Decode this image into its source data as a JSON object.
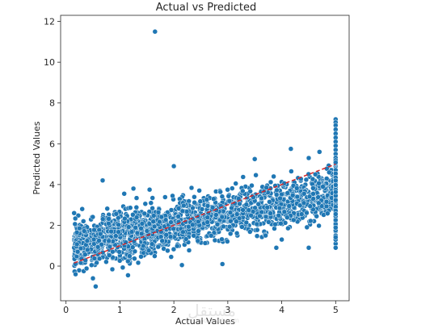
{
  "chart_data": {
    "type": "scatter",
    "title": "Actual vs Predicted",
    "xlabel": "Actual Values",
    "ylabel": "Predicted Values",
    "xlim": [
      -0.1,
      5.25
    ],
    "ylim": [
      -1.7,
      12.3
    ],
    "xticks": [
      0,
      1,
      2,
      3,
      4,
      5
    ],
    "yticks": [
      0,
      2,
      4,
      6,
      8,
      10,
      12
    ],
    "grid": false,
    "legend": "none",
    "point_color": "#1f77b4",
    "point_edge_color": "#ffffff",
    "reference_line": {
      "style": "dashed",
      "color": "#d62728",
      "from": [
        0.15,
        0.15
      ],
      "to": [
        5.0,
        5.0
      ]
    },
    "points_outliers": [
      {
        "x": 1.65,
        "y": 11.5
      },
      {
        "x": 0.68,
        "y": 4.2
      },
      {
        "x": 2.0,
        "y": 4.9
      },
      {
        "x": 3.5,
        "y": 5.25
      },
      {
        "x": 4.17,
        "y": 5.75
      },
      {
        "x": 0.55,
        "y": -1.0
      },
      {
        "x": 0.5,
        "y": -0.6
      },
      {
        "x": 1.15,
        "y": -0.45
      },
      {
        "x": 0.15,
        "y": 2.6
      },
      {
        "x": 0.3,
        "y": 2.8
      },
      {
        "x": 2.9,
        "y": 0.1
      },
      {
        "x": 4.5,
        "y": 0.9
      },
      {
        "x": 3.9,
        "y": 0.9
      },
      {
        "x": 4.5,
        "y": 5.3
      },
      {
        "x": 4.7,
        "y": 5.6
      },
      {
        "x": 1.25,
        "y": 3.8
      },
      {
        "x": 1.55,
        "y": 3.75
      },
      {
        "x": 1.08,
        "y": 3.55
      },
      {
        "x": 1.95,
        "y": 0.45
      },
      {
        "x": 2.15,
        "y": 0.05
      },
      {
        "x": 3.7,
        "y": 1.5
      },
      {
        "x": 4.0,
        "y": 1.3
      }
    ],
    "points_cap": {
      "x": 5.0,
      "y": [
        7.2,
        7.05,
        6.9,
        6.7,
        6.5,
        6.3,
        6.1,
        5.9,
        5.7,
        5.5,
        5.3,
        5.1,
        4.9,
        4.7,
        4.5,
        4.3,
        4.1,
        3.9,
        3.7,
        3.5,
        3.3,
        3.1,
        2.9,
        2.7,
        2.5,
        2.3,
        2.1,
        1.9,
        1.7,
        1.5,
        1.3,
        1.1,
        0.9
      ]
    },
    "cloud": {
      "description_points": "dense cloud approximately following y = 0.55*x + 0.9 with spread ~0.65",
      "x_range": [
        0.15,
        5.0
      ],
      "slope": 0.55,
      "intercept": 0.9,
      "spread": 0.65,
      "count": 1800
    }
  },
  "watermark": {
    "text": "مستقل",
    "subtext": "mostaql.com"
  }
}
